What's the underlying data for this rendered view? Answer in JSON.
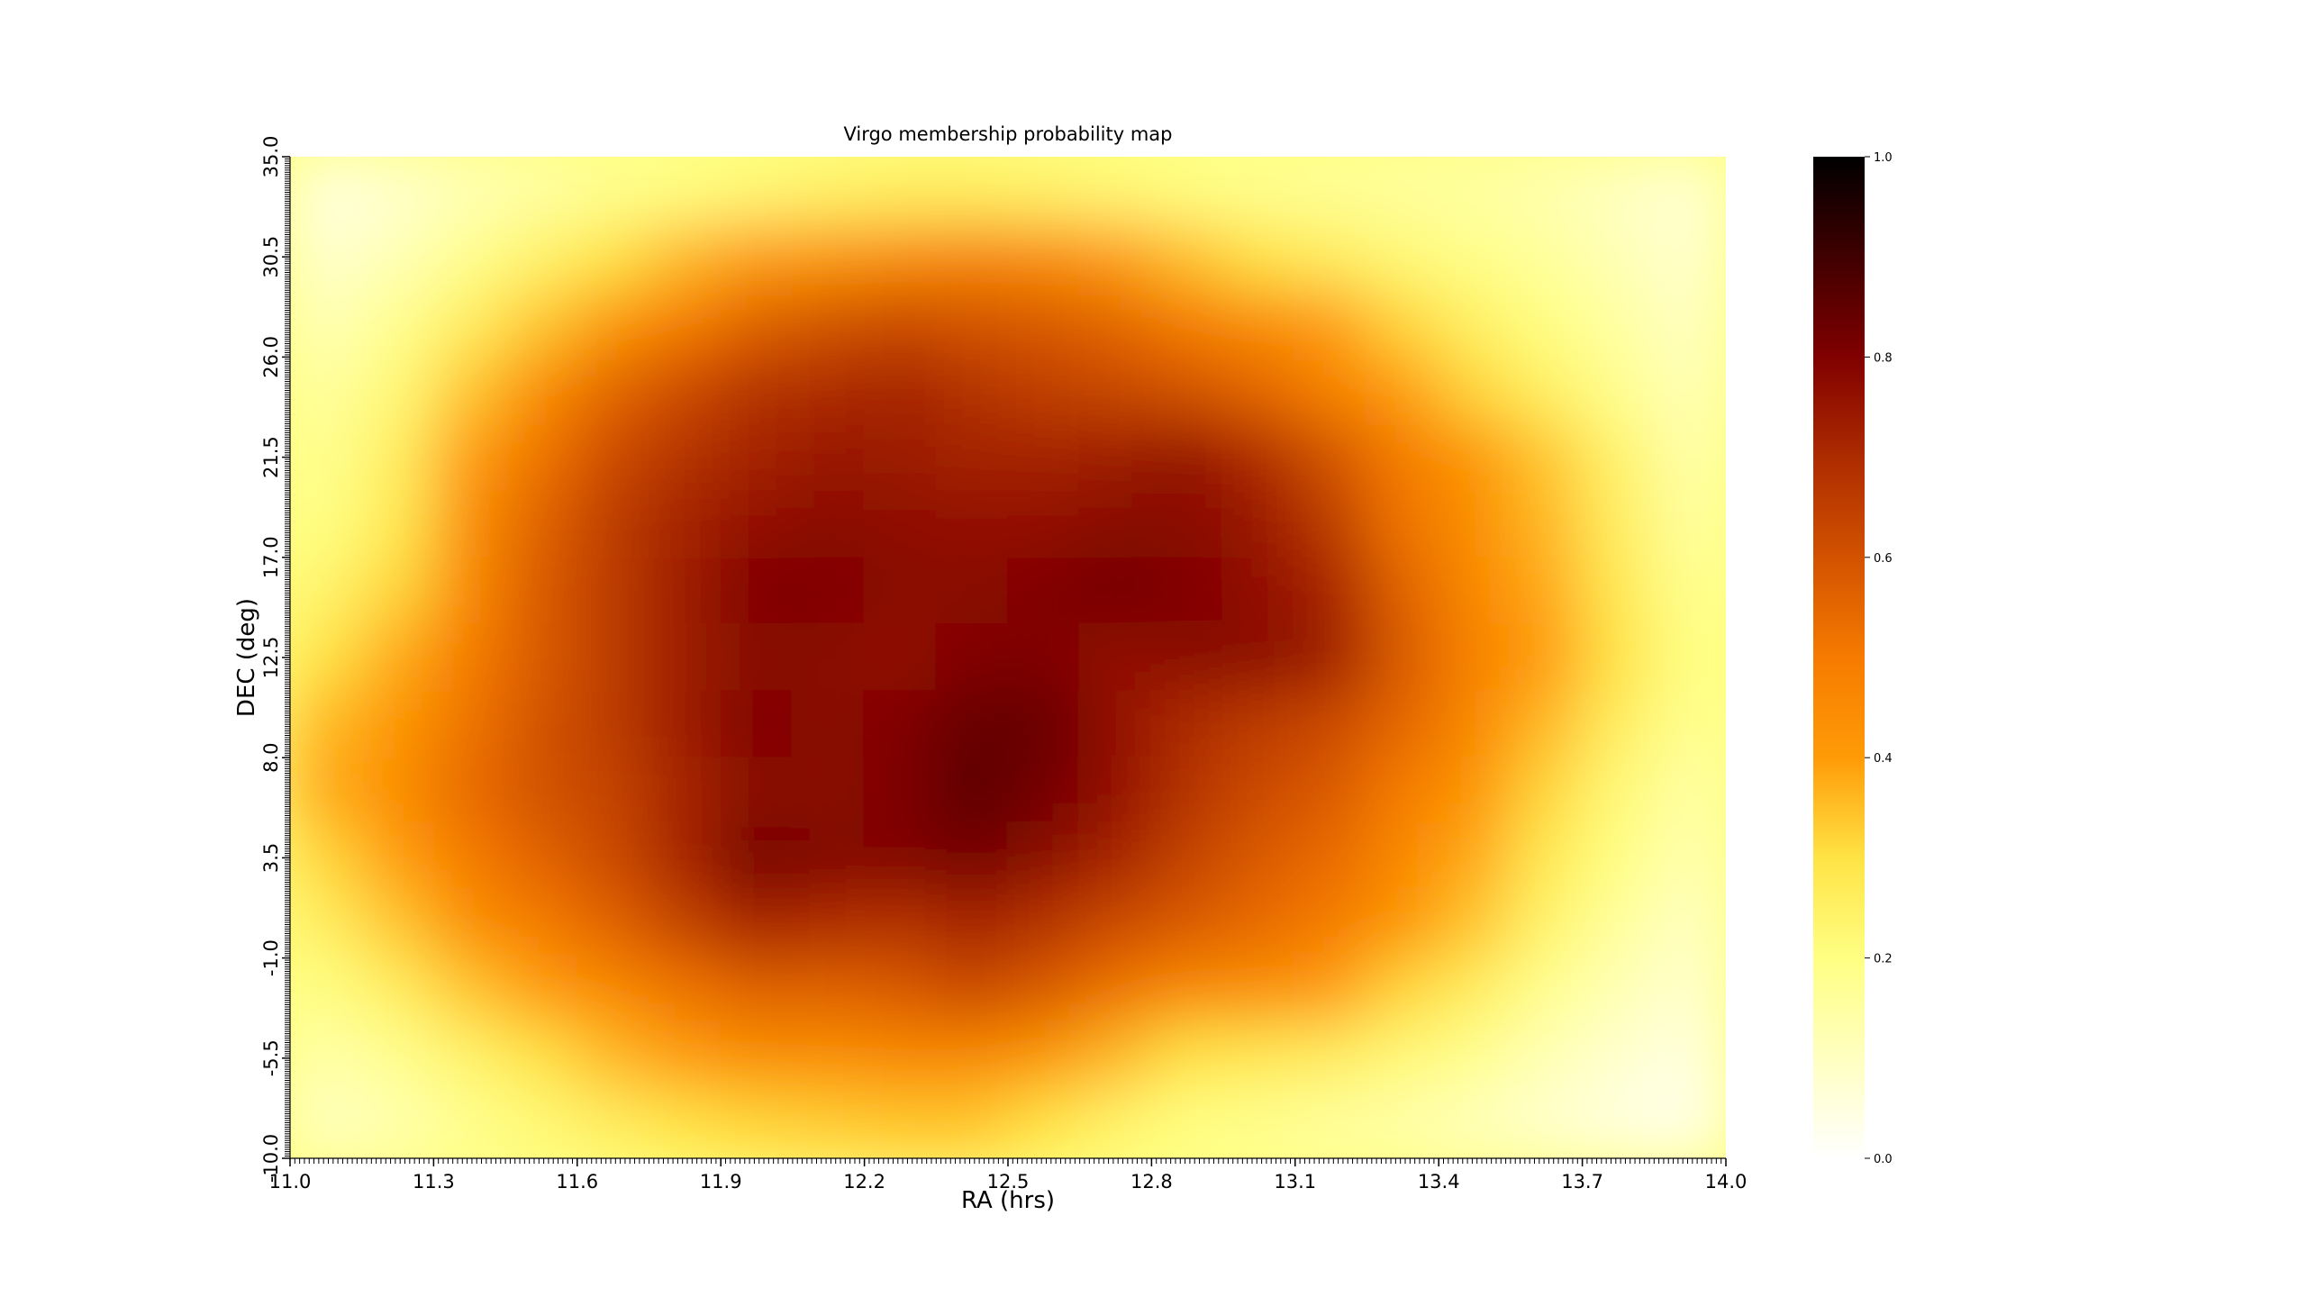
{
  "chart_data": {
    "type": "heatmap",
    "title": "Virgo membership probability map",
    "xlabel": "RA (hrs)",
    "ylabel": "DEC (deg)",
    "xlim": [
      11.0,
      14.0
    ],
    "ylim": [
      -10.0,
      35.0
    ],
    "x_ticks": [
      "11.0",
      "11.3",
      "11.6",
      "11.9",
      "12.2",
      "12.5",
      "12.8",
      "13.1",
      "13.4",
      "13.7",
      "14.0"
    ],
    "y_ticks": [
      "-10.0",
      "-5.5",
      "-1.0",
      "3.5",
      "8.0",
      "12.5",
      "17.0",
      "21.5",
      "26.0",
      "30.5",
      "35.0"
    ],
    "colorbar": {
      "colormap": "afmhot_r",
      "range": [
        0.0,
        1.0
      ],
      "ticks": [
        "0.0",
        "0.2",
        "0.4",
        "0.6",
        "0.8",
        "1.0"
      ]
    },
    "grid": false,
    "probability_grid": {
      "ra_centers": [
        11.075,
        11.225,
        11.375,
        11.525,
        11.675,
        11.825,
        11.975,
        12.125,
        12.275,
        12.425,
        12.575,
        12.725,
        12.875,
        13.025,
        13.175,
        13.325,
        13.475,
        13.625,
        13.775,
        13.925
      ],
      "dec_centers_top_to_bottom": [
        33.5,
        30.5,
        27.5,
        24.5,
        21.5,
        18.5,
        15.5,
        12.5,
        9.5,
        6.5,
        3.5,
        0.5,
        -2.5,
        -5.5,
        -8.5
      ],
      "values": [
        [
          0.05,
          0.08,
          0.12,
          0.15,
          0.18,
          0.2,
          0.22,
          0.24,
          0.25,
          0.25,
          0.24,
          0.22,
          0.2,
          0.18,
          0.17,
          0.16,
          0.15,
          0.13,
          0.1,
          0.07
        ],
        [
          0.08,
          0.12,
          0.18,
          0.24,
          0.3,
          0.36,
          0.4,
          0.42,
          0.45,
          0.47,
          0.45,
          0.4,
          0.35,
          0.3,
          0.26,
          0.22,
          0.19,
          0.16,
          0.12,
          0.08
        ],
        [
          0.12,
          0.18,
          0.26,
          0.34,
          0.42,
          0.5,
          0.56,
          0.6,
          0.62,
          0.6,
          0.58,
          0.55,
          0.5,
          0.45,
          0.4,
          0.32,
          0.25,
          0.2,
          0.15,
          0.1
        ],
        [
          0.16,
          0.22,
          0.34,
          0.45,
          0.55,
          0.62,
          0.68,
          0.7,
          0.72,
          0.68,
          0.65,
          0.63,
          0.6,
          0.55,
          0.48,
          0.4,
          0.32,
          0.25,
          0.18,
          0.12
        ],
        [
          0.18,
          0.26,
          0.4,
          0.52,
          0.62,
          0.68,
          0.72,
          0.75,
          0.74,
          0.72,
          0.72,
          0.74,
          0.76,
          0.7,
          0.6,
          0.5,
          0.42,
          0.34,
          0.24,
          0.14
        ],
        [
          0.2,
          0.28,
          0.44,
          0.56,
          0.66,
          0.72,
          0.76,
          0.78,
          0.77,
          0.76,
          0.76,
          0.78,
          0.78,
          0.75,
          0.66,
          0.52,
          0.44,
          0.36,
          0.26,
          0.16
        ],
        [
          0.24,
          0.32,
          0.46,
          0.58,
          0.66,
          0.74,
          0.8,
          0.8,
          0.78,
          0.78,
          0.8,
          0.82,
          0.8,
          0.76,
          0.72,
          0.56,
          0.46,
          0.38,
          0.28,
          0.18
        ],
        [
          0.3,
          0.38,
          0.5,
          0.58,
          0.66,
          0.74,
          0.78,
          0.78,
          0.76,
          0.8,
          0.8,
          0.76,
          0.78,
          0.78,
          0.74,
          0.58,
          0.48,
          0.4,
          0.3,
          0.2
        ],
        [
          0.36,
          0.42,
          0.52,
          0.6,
          0.66,
          0.74,
          0.8,
          0.78,
          0.8,
          0.84,
          0.84,
          0.76,
          0.7,
          0.66,
          0.62,
          0.55,
          0.46,
          0.36,
          0.26,
          0.18
        ],
        [
          0.38,
          0.44,
          0.54,
          0.6,
          0.64,
          0.72,
          0.78,
          0.78,
          0.8,
          0.86,
          0.82,
          0.76,
          0.68,
          0.62,
          0.58,
          0.5,
          0.42,
          0.32,
          0.22,
          0.15
        ],
        [
          0.32,
          0.4,
          0.5,
          0.56,
          0.62,
          0.72,
          0.82,
          0.8,
          0.8,
          0.82,
          0.78,
          0.72,
          0.64,
          0.58,
          0.54,
          0.46,
          0.38,
          0.28,
          0.2,
          0.13
        ],
        [
          0.26,
          0.34,
          0.44,
          0.5,
          0.56,
          0.64,
          0.72,
          0.7,
          0.68,
          0.72,
          0.68,
          0.62,
          0.58,
          0.54,
          0.5,
          0.42,
          0.34,
          0.24,
          0.16,
          0.1
        ],
        [
          0.2,
          0.26,
          0.34,
          0.4,
          0.46,
          0.52,
          0.56,
          0.56,
          0.58,
          0.62,
          0.58,
          0.52,
          0.46,
          0.44,
          0.4,
          0.32,
          0.26,
          0.18,
          0.12,
          0.08
        ],
        [
          0.14,
          0.18,
          0.24,
          0.3,
          0.36,
          0.4,
          0.44,
          0.44,
          0.46,
          0.46,
          0.42,
          0.36,
          0.3,
          0.28,
          0.26,
          0.22,
          0.18,
          0.12,
          0.08,
          0.05
        ],
        [
          0.1,
          0.13,
          0.18,
          0.22,
          0.26,
          0.3,
          0.32,
          0.33,
          0.34,
          0.34,
          0.3,
          0.24,
          0.2,
          0.18,
          0.16,
          0.14,
          0.11,
          0.08,
          0.05,
          0.03
        ]
      ]
    }
  }
}
